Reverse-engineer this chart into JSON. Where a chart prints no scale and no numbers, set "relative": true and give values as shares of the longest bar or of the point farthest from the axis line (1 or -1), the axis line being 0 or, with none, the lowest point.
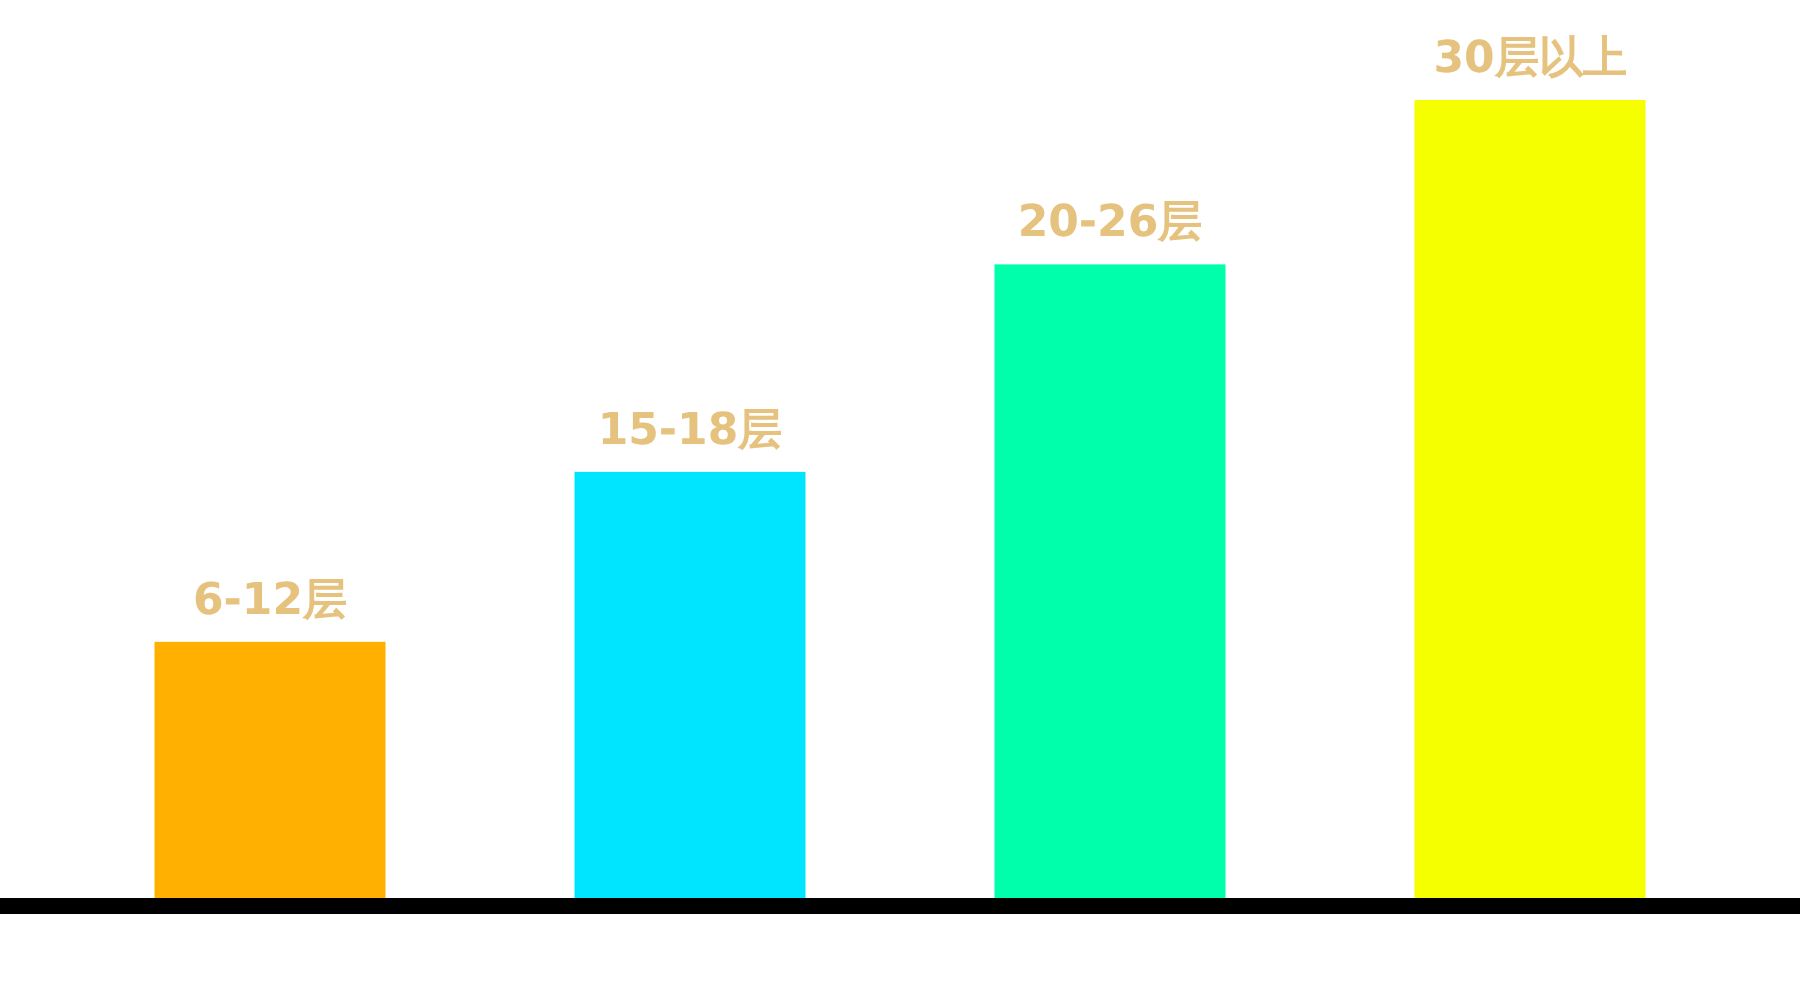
{
  "chart_data": {
    "type": "bar",
    "relative": true,
    "categories": [
      "6-12层",
      "15-18层",
      "20-26层",
      "30层以上"
    ],
    "values": [
      0.321,
      0.534,
      0.794,
      1
    ],
    "colors": [
      "#ffb000",
      "#00e5ff",
      "#00ffaa",
      "#f5ff00"
    ]
  }
}
